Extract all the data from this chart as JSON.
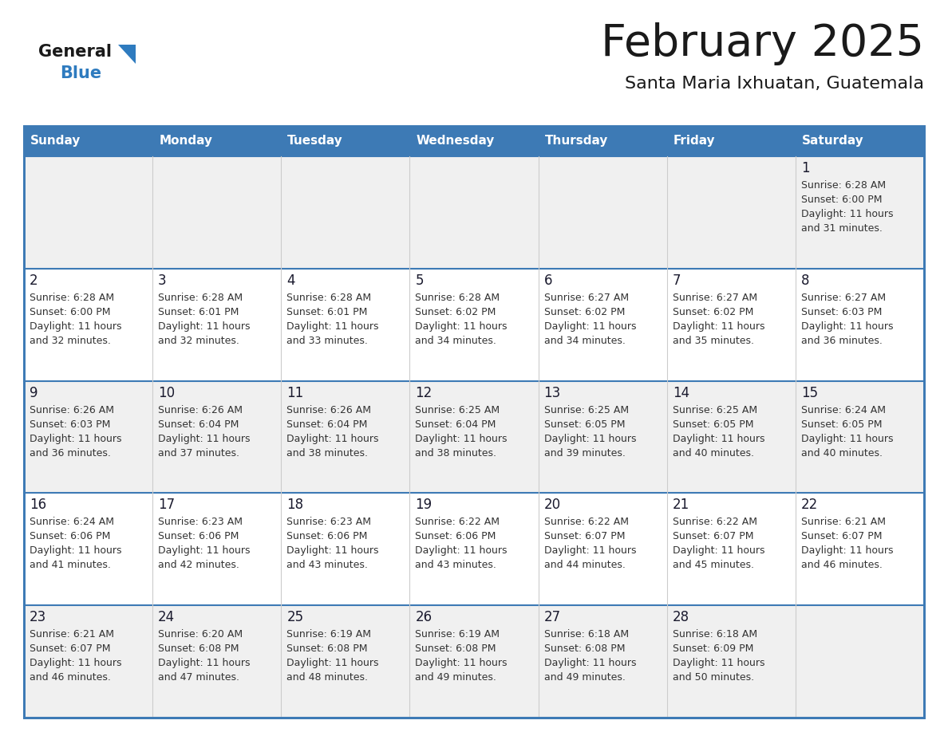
{
  "title": "February 2025",
  "subtitle": "Santa Maria Ixhuatan, Guatemala",
  "days_of_week": [
    "Sunday",
    "Monday",
    "Tuesday",
    "Wednesday",
    "Thursday",
    "Friday",
    "Saturday"
  ],
  "header_bg": "#3d7ab5",
  "header_text": "#ffffff",
  "cell_bg_odd": "#f0f0f0",
  "cell_bg_even": "#ffffff",
  "day_number_color": "#1a1a2e",
  "info_text_color": "#333333",
  "border_color": "#3d7ab5",
  "row_separator_color": "#3d7ab5",
  "col_separator_color": "#cccccc",
  "logo_general_color": "#1a1a1a",
  "logo_blue_color": "#2e7bbf",
  "logo_triangle_color": "#2e7bbf",
  "calendar_data": [
    [
      null,
      null,
      null,
      null,
      null,
      null,
      {
        "day": "1",
        "sunrise": "6:28 AM",
        "sunset": "6:00 PM",
        "daylight1": "Daylight: 11 hours",
        "daylight2": "and 31 minutes."
      }
    ],
    [
      {
        "day": "2",
        "sunrise": "6:28 AM",
        "sunset": "6:00 PM",
        "daylight1": "Daylight: 11 hours",
        "daylight2": "and 32 minutes."
      },
      {
        "day": "3",
        "sunrise": "6:28 AM",
        "sunset": "6:01 PM",
        "daylight1": "Daylight: 11 hours",
        "daylight2": "and 32 minutes."
      },
      {
        "day": "4",
        "sunrise": "6:28 AM",
        "sunset": "6:01 PM",
        "daylight1": "Daylight: 11 hours",
        "daylight2": "and 33 minutes."
      },
      {
        "day": "5",
        "sunrise": "6:28 AM",
        "sunset": "6:02 PM",
        "daylight1": "Daylight: 11 hours",
        "daylight2": "and 34 minutes."
      },
      {
        "day": "6",
        "sunrise": "6:27 AM",
        "sunset": "6:02 PM",
        "daylight1": "Daylight: 11 hours",
        "daylight2": "and 34 minutes."
      },
      {
        "day": "7",
        "sunrise": "6:27 AM",
        "sunset": "6:02 PM",
        "daylight1": "Daylight: 11 hours",
        "daylight2": "and 35 minutes."
      },
      {
        "day": "8",
        "sunrise": "6:27 AM",
        "sunset": "6:03 PM",
        "daylight1": "Daylight: 11 hours",
        "daylight2": "and 36 minutes."
      }
    ],
    [
      {
        "day": "9",
        "sunrise": "6:26 AM",
        "sunset": "6:03 PM",
        "daylight1": "Daylight: 11 hours",
        "daylight2": "and 36 minutes."
      },
      {
        "day": "10",
        "sunrise": "6:26 AM",
        "sunset": "6:04 PM",
        "daylight1": "Daylight: 11 hours",
        "daylight2": "and 37 minutes."
      },
      {
        "day": "11",
        "sunrise": "6:26 AM",
        "sunset": "6:04 PM",
        "daylight1": "Daylight: 11 hours",
        "daylight2": "and 38 minutes."
      },
      {
        "day": "12",
        "sunrise": "6:25 AM",
        "sunset": "6:04 PM",
        "daylight1": "Daylight: 11 hours",
        "daylight2": "and 38 minutes."
      },
      {
        "day": "13",
        "sunrise": "6:25 AM",
        "sunset": "6:05 PM",
        "daylight1": "Daylight: 11 hours",
        "daylight2": "and 39 minutes."
      },
      {
        "day": "14",
        "sunrise": "6:25 AM",
        "sunset": "6:05 PM",
        "daylight1": "Daylight: 11 hours",
        "daylight2": "and 40 minutes."
      },
      {
        "day": "15",
        "sunrise": "6:24 AM",
        "sunset": "6:05 PM",
        "daylight1": "Daylight: 11 hours",
        "daylight2": "and 40 minutes."
      }
    ],
    [
      {
        "day": "16",
        "sunrise": "6:24 AM",
        "sunset": "6:06 PM",
        "daylight1": "Daylight: 11 hours",
        "daylight2": "and 41 minutes."
      },
      {
        "day": "17",
        "sunrise": "6:23 AM",
        "sunset": "6:06 PM",
        "daylight1": "Daylight: 11 hours",
        "daylight2": "and 42 minutes."
      },
      {
        "day": "18",
        "sunrise": "6:23 AM",
        "sunset": "6:06 PM",
        "daylight1": "Daylight: 11 hours",
        "daylight2": "and 43 minutes."
      },
      {
        "day": "19",
        "sunrise": "6:22 AM",
        "sunset": "6:06 PM",
        "daylight1": "Daylight: 11 hours",
        "daylight2": "and 43 minutes."
      },
      {
        "day": "20",
        "sunrise": "6:22 AM",
        "sunset": "6:07 PM",
        "daylight1": "Daylight: 11 hours",
        "daylight2": "and 44 minutes."
      },
      {
        "day": "21",
        "sunrise": "6:22 AM",
        "sunset": "6:07 PM",
        "daylight1": "Daylight: 11 hours",
        "daylight2": "and 45 minutes."
      },
      {
        "day": "22",
        "sunrise": "6:21 AM",
        "sunset": "6:07 PM",
        "daylight1": "Daylight: 11 hours",
        "daylight2": "and 46 minutes."
      }
    ],
    [
      {
        "day": "23",
        "sunrise": "6:21 AM",
        "sunset": "6:07 PM",
        "daylight1": "Daylight: 11 hours",
        "daylight2": "and 46 minutes."
      },
      {
        "day": "24",
        "sunrise": "6:20 AM",
        "sunset": "6:08 PM",
        "daylight1": "Daylight: 11 hours",
        "daylight2": "and 47 minutes."
      },
      {
        "day": "25",
        "sunrise": "6:19 AM",
        "sunset": "6:08 PM",
        "daylight1": "Daylight: 11 hours",
        "daylight2": "and 48 minutes."
      },
      {
        "day": "26",
        "sunrise": "6:19 AM",
        "sunset": "6:08 PM",
        "daylight1": "Daylight: 11 hours",
        "daylight2": "and 49 minutes."
      },
      {
        "day": "27",
        "sunrise": "6:18 AM",
        "sunset": "6:08 PM",
        "daylight1": "Daylight: 11 hours",
        "daylight2": "and 49 minutes."
      },
      {
        "day": "28",
        "sunrise": "6:18 AM",
        "sunset": "6:09 PM",
        "daylight1": "Daylight: 11 hours",
        "daylight2": "and 50 minutes."
      },
      null
    ]
  ]
}
